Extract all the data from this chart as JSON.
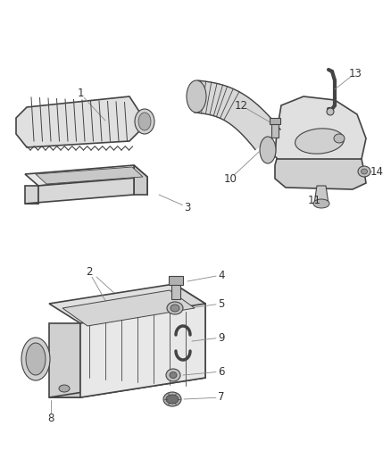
{
  "bg_color": "#ffffff",
  "line_color": "#444444",
  "label_color": "#333333",
  "fig_width": 4.38,
  "fig_height": 5.33,
  "dpi": 100
}
